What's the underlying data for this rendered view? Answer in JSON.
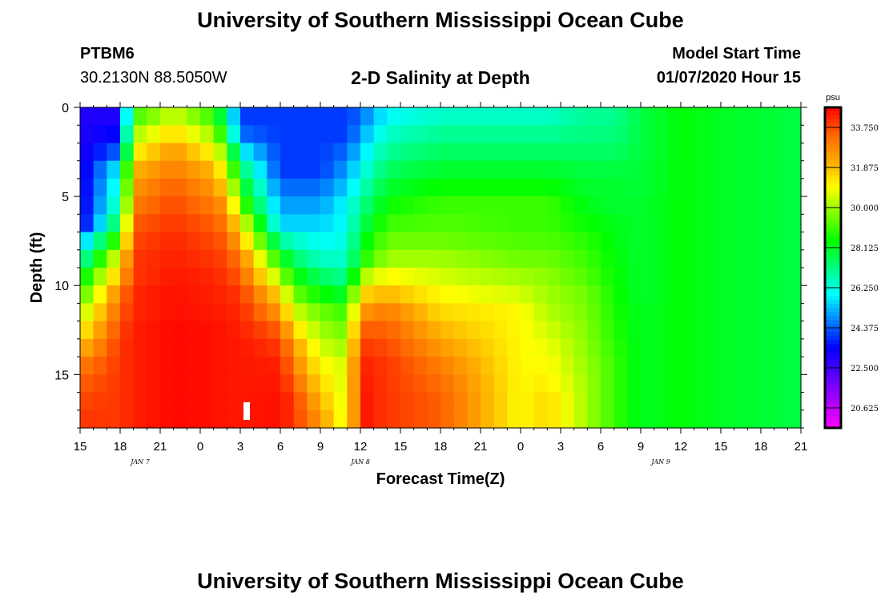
{
  "header": {
    "title": "University of Southern Mississippi Ocean Cube",
    "station_id": "PTBM6",
    "station_coords": "30.2130N 88.5050W",
    "plot_title": "2-D Salinity at Depth",
    "model_label": "Model Start Time",
    "model_time": "01/07/2020 Hour 15"
  },
  "footer": {
    "title": "University of Southern Mississippi Ocean Cube"
  },
  "chart_data": {
    "type": "heatmap",
    "title": "2-D Salinity at Depth",
    "xlabel": "Forecast Time(Z)",
    "ylabel": "Depth (ft)",
    "x_range_hours": [
      0,
      54
    ],
    "ylim": [
      0,
      18
    ],
    "x_ticks": [
      "15",
      "18",
      "21",
      "0",
      "3",
      "6",
      "9",
      "12",
      "15",
      "18",
      "21",
      "0",
      "3",
      "6",
      "9",
      "12",
      "15",
      "18",
      "21"
    ],
    "y_ticks": [
      "0",
      "5",
      "10",
      "15"
    ],
    "y_tick_values": [
      0,
      5,
      10,
      15
    ],
    "date_labels": [
      {
        "text": "JAN 7",
        "hour": 4.5
      },
      {
        "text": "JAN 8",
        "hour": 21
      },
      {
        "text": "JAN 9",
        "hour": 43.5
      }
    ],
    "colorbar": {
      "unit": "psu",
      "min": 19.6875,
      "max": 34.6875,
      "ticks": [
        "33.750",
        "31.875",
        "30.000",
        "28.125",
        "26.250",
        "24.375",
        "22.500",
        "20.625"
      ],
      "tick_values": [
        33.75,
        31.875,
        30.0,
        28.125,
        26.25,
        24.375,
        22.5,
        20.625
      ],
      "colors": [
        "#ff00ff",
        "#aa00ff",
        "#5500ff",
        "#0000ff",
        "#0080ff",
        "#00ffff",
        "#00ff80",
        "#00ff00",
        "#80ff00",
        "#ffff00",
        "#ffaa00",
        "#ff6400",
        "#ff0000"
      ]
    },
    "grid_cols": 54,
    "grid_rows": 18,
    "profiles": [
      {
        "t": 0,
        "v": [
          23,
          23,
          23,
          23,
          23,
          23,
          23,
          25,
          26.5,
          28,
          29,
          30,
          31,
          32,
          33,
          33.5,
          33.8,
          34
        ]
      },
      {
        "t": 3,
        "v": [
          23,
          23.5,
          24.5,
          26,
          26.5,
          27,
          28,
          29.5,
          31,
          32,
          33,
          33.5,
          33.8,
          34,
          34,
          34,
          34,
          34
        ]
      },
      {
        "t": 4,
        "v": [
          29,
          30,
          31,
          32,
          32.5,
          33,
          33.5,
          33.8,
          34,
          34,
          34.2,
          34.2,
          34.3,
          34.3,
          34.3,
          34.3,
          34.3,
          34.3
        ]
      },
      {
        "t": 7,
        "v": [
          30.5,
          31.5,
          32.5,
          33,
          33.5,
          33.8,
          34,
          34.2,
          34.3,
          34.4,
          34.5,
          34.5,
          34.6,
          34.6,
          34.6,
          34.6,
          34.6,
          34.6
        ]
      },
      {
        "t": 10,
        "v": [
          29,
          30,
          31,
          32,
          32.5,
          33,
          33.5,
          33.8,
          34,
          34.2,
          34.3,
          34.4,
          34.5,
          34.5,
          34.5,
          34.5,
          34.5,
          34.5
        ]
      },
      {
        "t": 11,
        "v": [
          27,
          28,
          29.5,
          30.5,
          31.5,
          32.5,
          33,
          33.5,
          33.8,
          34,
          34.2,
          34.3,
          34.4,
          34.4,
          34.4,
          34.4,
          34.4,
          34.4
        ]
      },
      {
        "t": 12,
        "v": [
          24,
          24.5,
          26,
          27.5,
          28.5,
          29.5,
          31,
          32,
          33,
          33.5,
          34,
          34.2,
          34.3,
          34.4,
          34.4,
          34.4,
          34.4,
          34.4
        ]
      },
      {
        "t": 15,
        "v": [
          24,
          24,
          24,
          24,
          24.5,
          25,
          25.5,
          27,
          28.5,
          30,
          31.5,
          32.5,
          33.5,
          34,
          34.3,
          34.4,
          34.5,
          34.5
        ]
      },
      {
        "t": 16,
        "v": [
          24,
          24,
          24,
          24,
          24.5,
          25,
          25.5,
          26.5,
          27.5,
          28.5,
          29.5,
          30.5,
          31.5,
          32.5,
          33,
          33.5,
          34,
          34
        ]
      },
      {
        "t": 18,
        "v": [
          24,
          24,
          24,
          24,
          24.5,
          25,
          25.5,
          26,
          26.5,
          27.5,
          28.5,
          29.5,
          30,
          30.5,
          31,
          31.5,
          32,
          32.5
        ]
      },
      {
        "t": 20,
        "v": [
          24,
          24,
          24.5,
          25,
          25.5,
          26,
          26,
          26.2,
          26.5,
          27,
          28,
          29,
          29.5,
          30,
          30.5,
          30.5,
          30.5,
          30.5
        ]
      },
      {
        "t": 21,
        "v": [
          24.5,
          25,
          25.5,
          26,
          26.5,
          27,
          27.5,
          28,
          28.5,
          30,
          31.5,
          32.5,
          33.5,
          34,
          34.3,
          34.4,
          34.5,
          34.5
        ]
      },
      {
        "t": 23,
        "v": [
          26,
          26.5,
          27,
          27.5,
          28,
          28.5,
          29,
          29.5,
          30,
          31,
          32,
          33,
          33.5,
          33.8,
          34,
          34,
          34,
          34
        ]
      },
      {
        "t": 27,
        "v": [
          26.5,
          27,
          27.5,
          28,
          28.5,
          29,
          29.2,
          29.5,
          30,
          30.5,
          31,
          31.5,
          32,
          32.5,
          33,
          33.3,
          33.5,
          33.5
        ]
      },
      {
        "t": 33,
        "v": [
          26.5,
          27,
          27.5,
          28,
          28.5,
          29,
          29,
          29.2,
          29.5,
          30,
          30.5,
          31,
          31,
          31,
          31,
          31,
          31,
          31
        ]
      },
      {
        "t": 35,
        "v": [
          26.5,
          27,
          27.5,
          28,
          28.5,
          29,
          29,
          29.2,
          29.5,
          29.8,
          30,
          30.2,
          30.5,
          30.8,
          31,
          31.2,
          31.5,
          31.5
        ]
      },
      {
        "t": 38,
        "v": [
          27,
          27.2,
          27.5,
          27.8,
          28,
          28.2,
          28.5,
          28.8,
          29,
          29.2,
          29.5,
          29.6,
          29.7,
          29.8,
          29.9,
          30,
          30,
          30
        ]
      },
      {
        "t": 40,
        "v": [
          27,
          27.2,
          27.5,
          27.8,
          28,
          28,
          28.2,
          28.3,
          28.4,
          28.5,
          28.6,
          28.7,
          28.8,
          28.9,
          29,
          29,
          29,
          29
        ]
      },
      {
        "t": 42,
        "v": [
          27.8,
          27.8,
          27.8,
          27.9,
          27.9,
          28,
          28,
          28,
          28,
          28,
          28,
          28.1,
          28.1,
          28.1,
          28.1,
          28.1,
          28.1,
          28.1
        ]
      },
      {
        "t": 45,
        "v": [
          28.4,
          28.4,
          28.4,
          28.4,
          28.4,
          28.4,
          28.4,
          28.4,
          28.4,
          28.4,
          28.4,
          28.4,
          28.4,
          28.4,
          28.4,
          28.4,
          28.4,
          28.4
        ]
      },
      {
        "t": 48,
        "v": [
          28.1,
          28.1,
          28.1,
          28.1,
          28.1,
          28.1,
          28.1,
          28.1,
          28.1,
          28.1,
          28.1,
          28.1,
          28.1,
          28.1,
          28.1,
          28.1,
          28.1,
          28.1
        ]
      },
      {
        "t": 54,
        "v": [
          27.8,
          27.8,
          27.8,
          27.8,
          27.8,
          27.8,
          27.8,
          27.8,
          27.8,
          27.8,
          27.8,
          27.8,
          27.8,
          27.8,
          27.8,
          27.8,
          27.8,
          27.8
        ]
      }
    ]
  }
}
